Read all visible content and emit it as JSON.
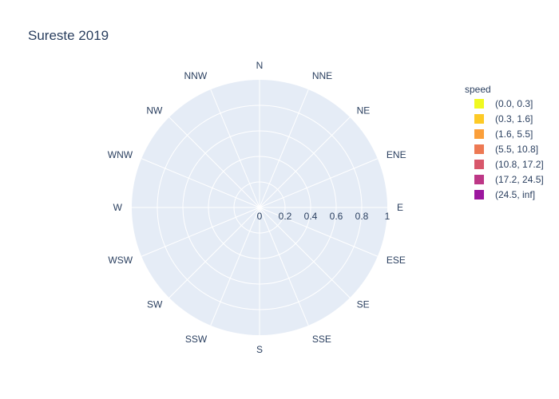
{
  "chart_data": {
    "type": "barpolar",
    "title": "Sureste 2019",
    "directions": [
      "N",
      "NNE",
      "NE",
      "ENE",
      "E",
      "ESE",
      "SE",
      "SSE",
      "S",
      "SSW",
      "SW",
      "WSW",
      "W",
      "WNW",
      "NW",
      "NNW"
    ],
    "radial_ticks": [
      "0",
      "0.2",
      "0.4",
      "0.6",
      "0.8",
      "1"
    ],
    "radial_range": [
      0,
      1
    ],
    "grid": true,
    "legend": {
      "title": "speed",
      "placement": "right",
      "entries": [
        {
          "name": "(0.0, 0.3]",
          "color": "#f0f921"
        },
        {
          "name": "(0.3, 1.6]",
          "color": "#fdca26"
        },
        {
          "name": "(1.6, 5.5]",
          "color": "#fb9f3a"
        },
        {
          "name": "(5.5, 10.8]",
          "color": "#ed7953"
        },
        {
          "name": "(10.8, 17.2]",
          "color": "#d8576b"
        },
        {
          "name": "(17.2, 24.5]",
          "color": "#bd3786"
        },
        {
          "name": "(24.5, inf]",
          "color": "#9c179e"
        }
      ]
    },
    "series": []
  },
  "colors": {
    "polar_bg": "#e5ecf6",
    "grid": "#ffffff",
    "text": "#2a3f5f"
  }
}
